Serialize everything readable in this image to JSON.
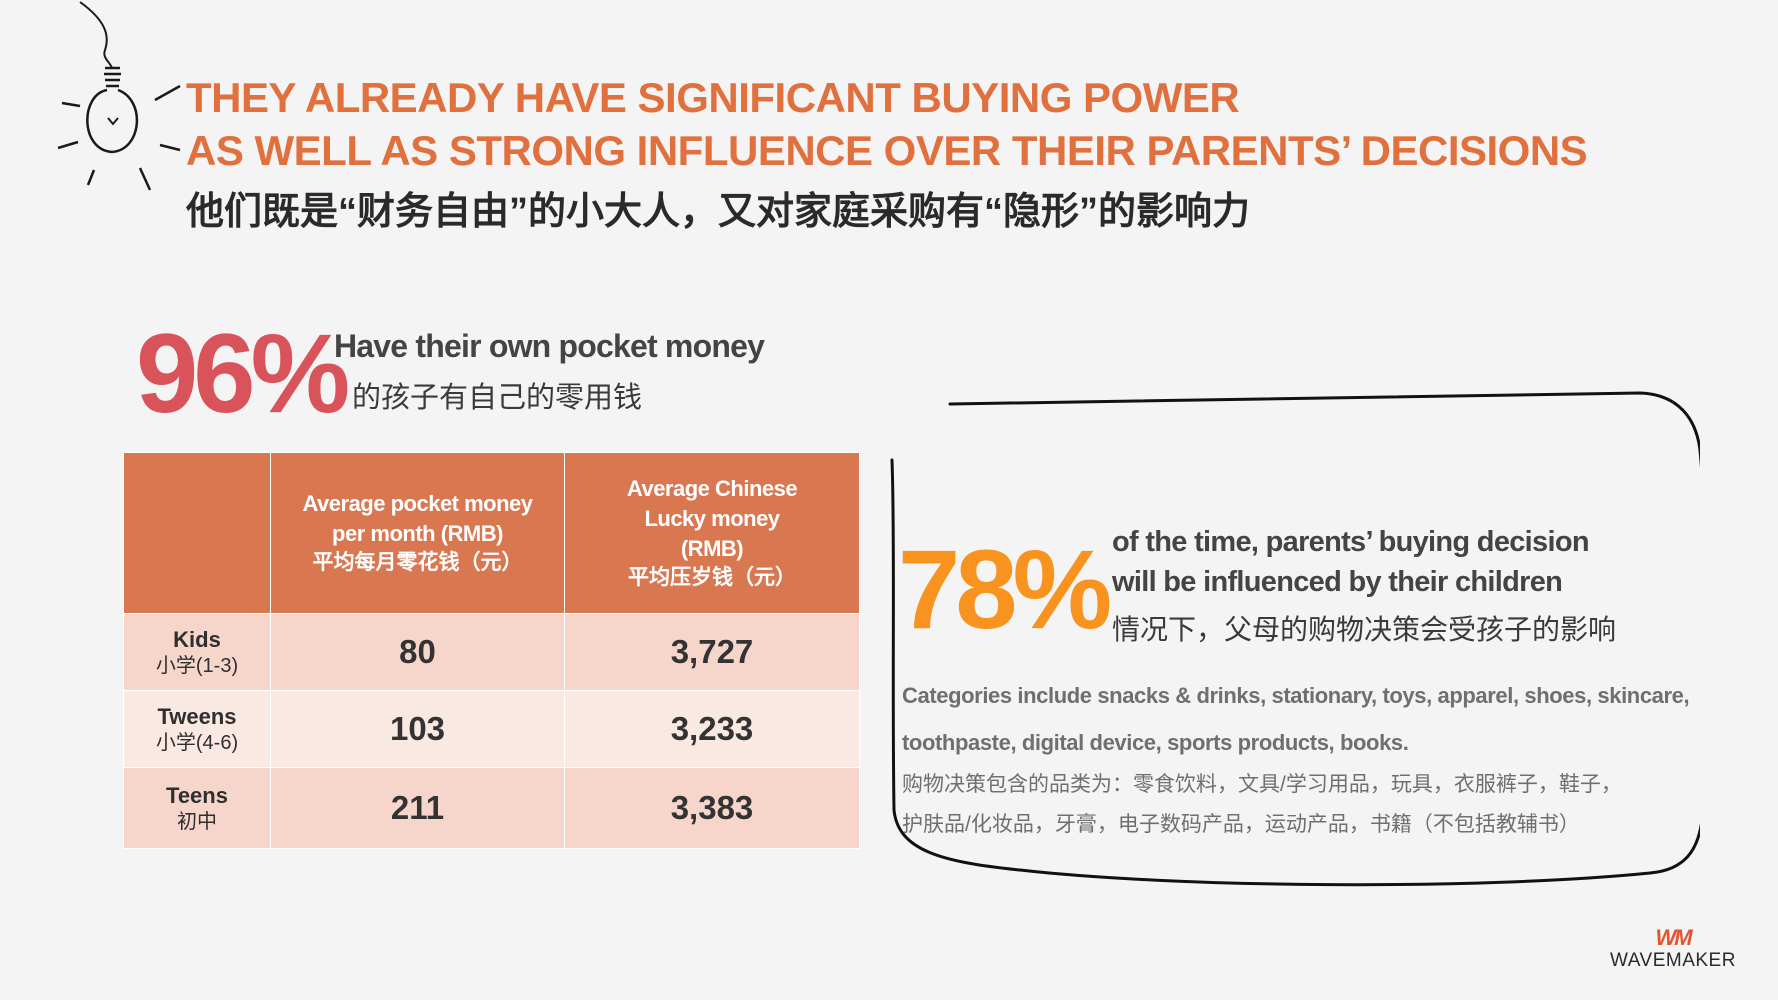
{
  "header": {
    "line1": "THEY ALREADY HAVE SIGNIFICANT BUYING POWER",
    "line2": "AS WELL AS STRONG INFLUENCE OVER THEIR PARENTS’ DECISIONS",
    "line_cn": "他们既是“财务自由”的小大人，又对家庭采购有“隐形”的影响力",
    "icon": "lightbulb-icon"
  },
  "stat1": {
    "percent": "96%",
    "text_en": "Have their own pocket money",
    "text_cn": "的孩子有自己的零用钱",
    "color": "#d9535a"
  },
  "table": {
    "headers": [
      {
        "en": "",
        "cn": ""
      },
      {
        "en": "Average pocket money per month (RMB)",
        "cn": "平均每月零花钱（元）"
      },
      {
        "en": "Average Chinese Lucky money (RMB)",
        "cn": "平均压岁钱（元）"
      }
    ],
    "rows": [
      {
        "label_en": "Kids",
        "label_cn": "小学(1-3)",
        "pocket": "80",
        "lucky": "3,727"
      },
      {
        "label_en": "Tweens",
        "label_cn": "小学(4-6)",
        "pocket": "103",
        "lucky": "3,233"
      },
      {
        "label_en": "Teens",
        "label_cn": "初中",
        "pocket": "211",
        "lucky": "3,383"
      }
    ],
    "header_color": "#d97751"
  },
  "stat2": {
    "percent": "78%",
    "text_en_1": "of the time, parents’ buying decision",
    "text_en_2": "will be influenced by their children",
    "text_cn": "情况下，父母的购物决策会受孩子的影响",
    "color": "#f7931e"
  },
  "categories": {
    "en_1": "Categories include snacks & drinks, stationary, toys, apparel, shoes, skincare,",
    "en_2": "toothpaste, digital device, sports products, books.",
    "cn_1": "购物决策包含的品类为：零食饮料，文具/学习用品，玩具，衣服裤子，鞋子，",
    "cn_2": "护肤品/化妆品，牙膏，电子数码产品，运动产品，书籍（不包括教辅书）"
  },
  "brand": {
    "mark": "WM",
    "name": "WAVEMAKER",
    "mark_color": "#e5532f"
  }
}
